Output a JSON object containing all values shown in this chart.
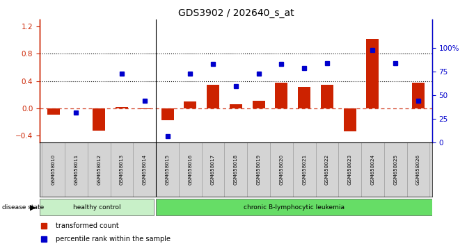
{
  "title": "GDS3902 / 202640_s_at",
  "samples": [
    "GSM658010",
    "GSM658011",
    "GSM658012",
    "GSM658013",
    "GSM658014",
    "GSM658015",
    "GSM658016",
    "GSM658017",
    "GSM658018",
    "GSM658019",
    "GSM658020",
    "GSM658021",
    "GSM658022",
    "GSM658023",
    "GSM658024",
    "GSM658025",
    "GSM658026"
  ],
  "transformed_count": [
    -0.09,
    0.0,
    -0.32,
    0.02,
    -0.01,
    -0.17,
    0.1,
    0.35,
    0.06,
    0.11,
    0.38,
    0.32,
    0.35,
    -0.33,
    1.02,
    0.0,
    0.38
  ],
  "percentile_rank": [
    null,
    0.32,
    null,
    0.73,
    0.44,
    0.07,
    0.73,
    0.83,
    0.6,
    0.73,
    0.83,
    0.79,
    0.84,
    null,
    0.98,
    0.84,
    0.44
  ],
  "healthy_control_count": 5,
  "bar_color": "#cc2200",
  "dot_color": "#0000cc",
  "left_ylim": [
    -0.5,
    1.3
  ],
  "right_ylim": [
    0,
    130
  ],
  "left_yticks": [
    -0.4,
    0.0,
    0.4,
    0.8,
    1.2
  ],
  "right_yticks": [
    0,
    25,
    50,
    75,
    100
  ],
  "right_yticklabels": [
    "0",
    "25",
    "50",
    "75",
    "100%"
  ],
  "hline_y": [
    0.4,
    0.8
  ],
  "zero_line_y": 0.0,
  "healthy_bg": "#c8f0c8",
  "leukemia_bg": "#66dd66",
  "label_healthy": "healthy control",
  "label_leukemia": "chronic B-lymphocytic leukemia",
  "legend_bar_label": "transformed count",
  "legend_dot_label": "percentile rank within the sample",
  "disease_state_label": "disease state",
  "xticklabel_bg": "#d4d4d4"
}
